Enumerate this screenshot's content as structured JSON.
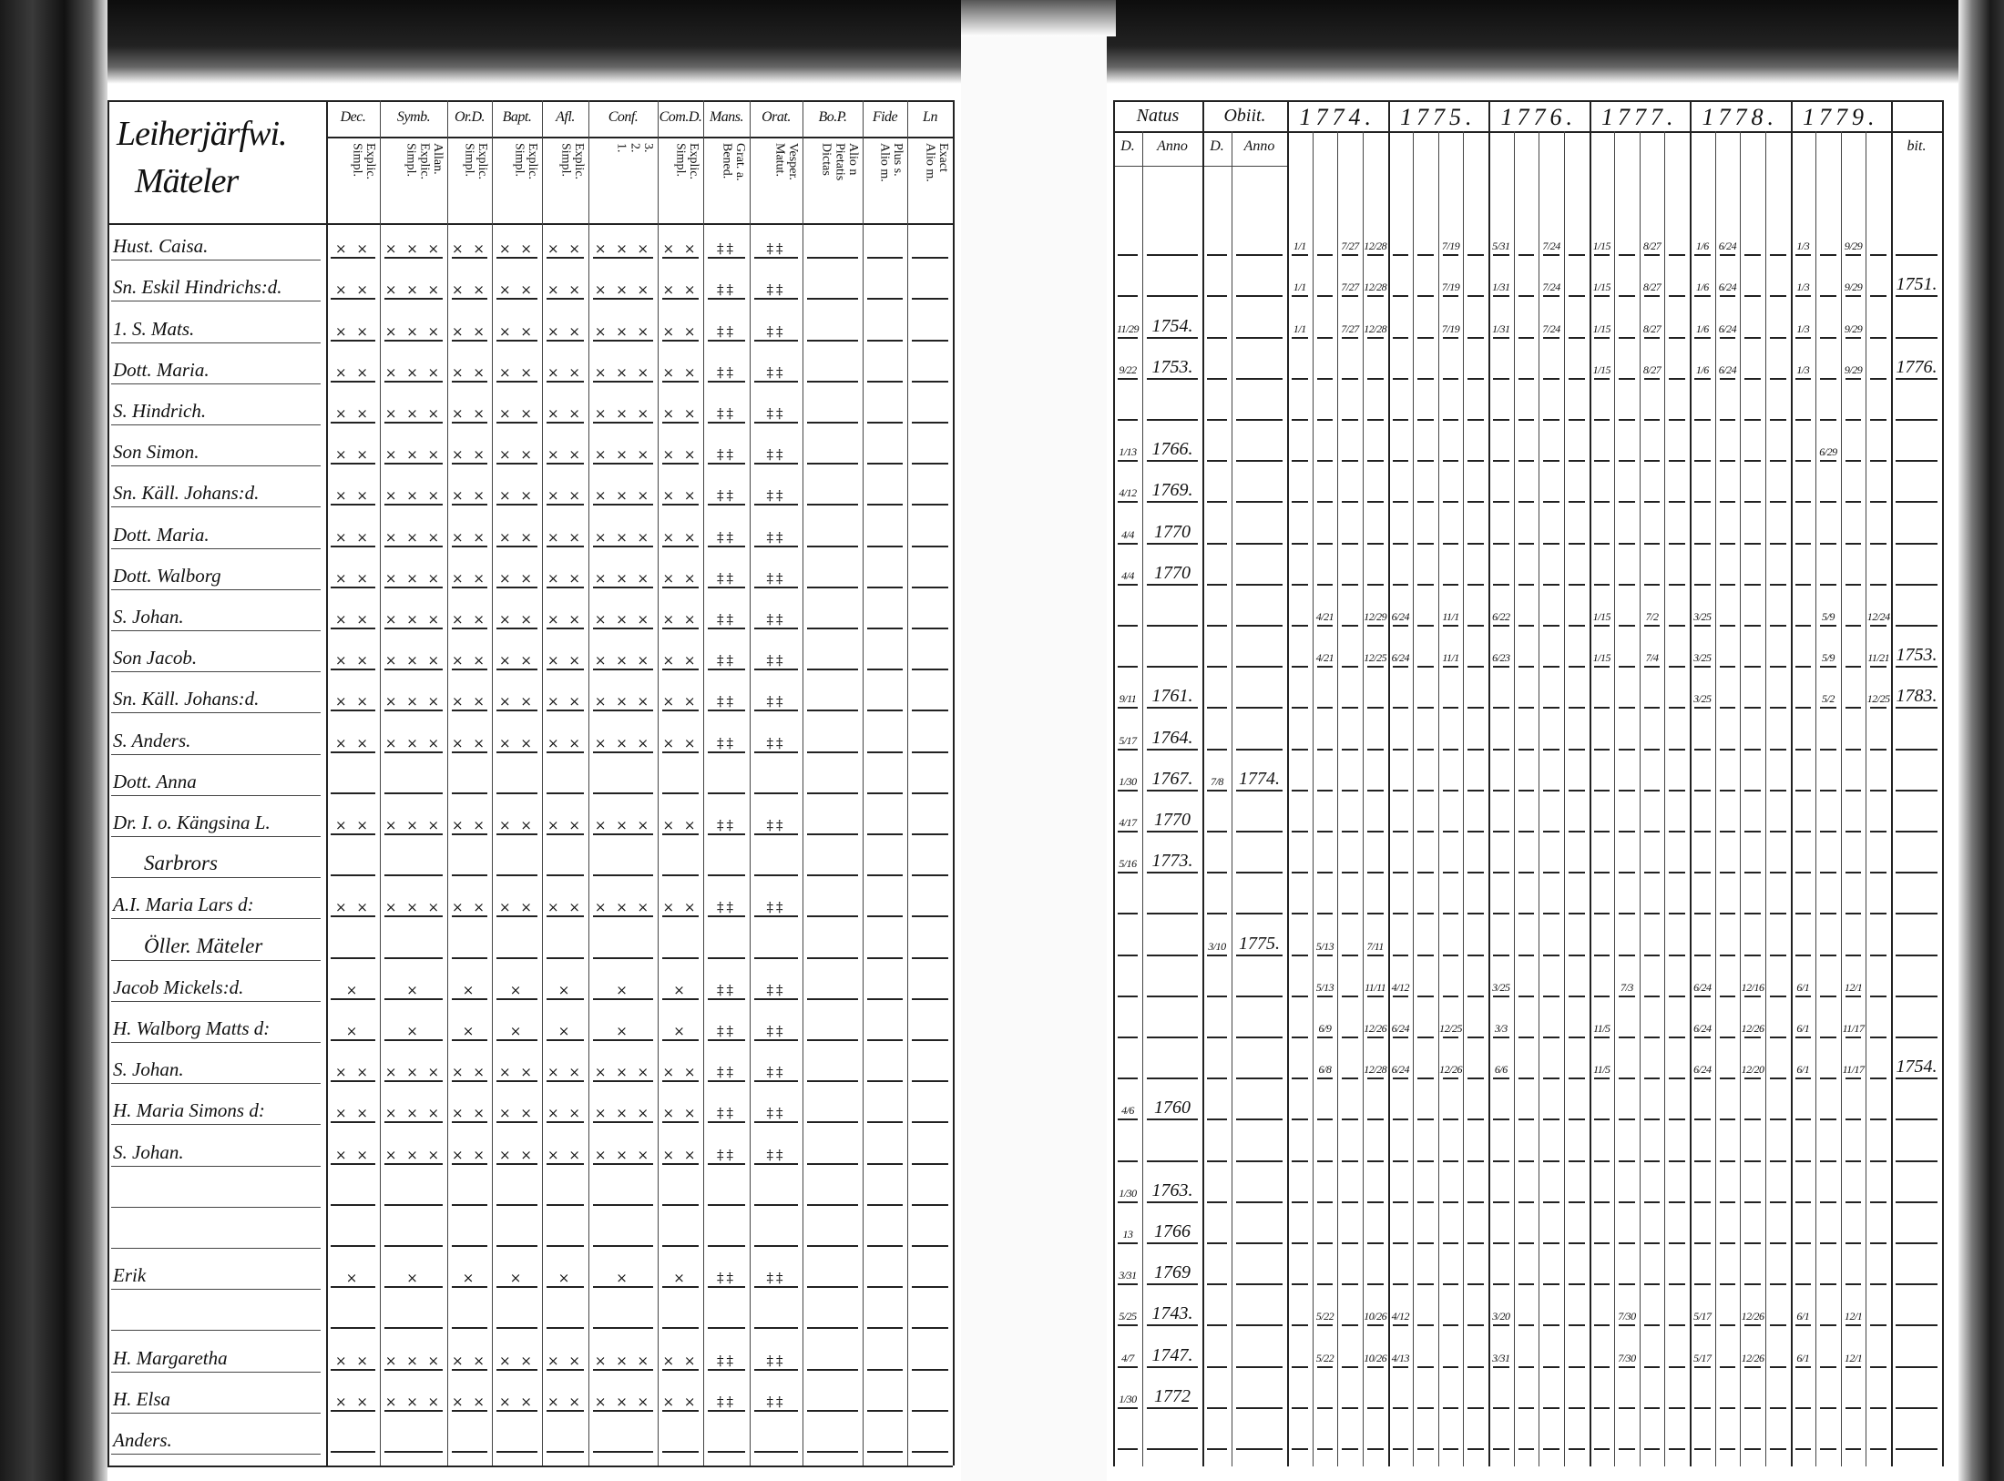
{
  "left_page": {
    "title_line1": "Leiherjärfwi.",
    "title_line2": "Mäteler",
    "columns": [
      {
        "head": "Dec.",
        "sub": "Explic.\nSimpl."
      },
      {
        "head": "Symb.",
        "sub": "Allan.\nExplic.\nSimpl."
      },
      {
        "head": "Or.D.",
        "sub": "Explic.\nSimpl."
      },
      {
        "head": "Bapt.",
        "sub": "Explic.\nSimpl."
      },
      {
        "head": "Afl.",
        "sub": "Explic.\nSimpl."
      },
      {
        "head": "Conf.",
        "sub": "3.\n2.\n1."
      },
      {
        "head": "Com.D.",
        "sub": "Explic.\nSimpl."
      },
      {
        "head": "Mans.",
        "sub": "Grat. a.\nBened."
      },
      {
        "head": "Orat.",
        "sub": "Vesper.\nMatut."
      },
      {
        "head": "Bo.P.",
        "sub": "Alio n\nPietatis\nDictas"
      },
      {
        "head": "Fide",
        "sub": "Plus s.\nAlio m."
      },
      {
        "head": "Ln",
        "sub": "Exact\nAlio m."
      }
    ],
    "mark_patterns": {
      "A": [
        "× ×",
        "× × ×",
        "× ×",
        "× ×",
        "× ×",
        "× × ×",
        "× ×",
        "‡‡",
        "‡‡",
        "—",
        "—",
        "—"
      ],
      "B": [
        "×",
        "×",
        "×",
        "×",
        "×",
        "×",
        "×",
        "‡‡",
        "‡‡",
        "—",
        "—",
        "—"
      ],
      "D": [
        "—",
        "—",
        "—",
        "—",
        "—",
        "—",
        "—",
        "—",
        "—",
        "—",
        "—",
        "—"
      ]
    },
    "rows": [
      {
        "name": "Hust. Caisa.",
        "marks": "A"
      },
      {
        "name": "Sn. Eskil Hindrichs:d.",
        "marks": "A"
      },
      {
        "name": "1. S. Mats.",
        "marks": "A"
      },
      {
        "name": "Dott. Maria.",
        "marks": "A"
      },
      {
        "name": "S. Hindrich.",
        "marks": "A"
      },
      {
        "name": "Son Simon.",
        "marks": "A"
      },
      {
        "name": "Sn. Käll. Johans:d.",
        "marks": "A"
      },
      {
        "name": "Dott. Maria.",
        "marks": "A"
      },
      {
        "name": "Dott. Walborg",
        "marks": "A"
      },
      {
        "name": "S. Johan.",
        "marks": "A"
      },
      {
        "name": "Son Jacob.",
        "marks": "A"
      },
      {
        "name": "Sn. Käll. Johans:d.",
        "marks": "A"
      },
      {
        "name": "S. Anders.",
        "marks": "A"
      },
      {
        "name": "Dott. Anna",
        "marks": "D"
      },
      {
        "name": "Dr. I. o. Kängsina L.",
        "marks": "A"
      },
      {
        "name": "Sarbrors",
        "marks": "D",
        "heading": true
      },
      {
        "name": "A.I. Maria Lars d:",
        "marks": "A"
      },
      {
        "name": "Öller. Mäteler",
        "marks": "D",
        "heading": true
      },
      {
        "name": "Jacob Mickels:d.",
        "marks": "B"
      },
      {
        "name": "H. Walborg Matts d:",
        "marks": "B"
      },
      {
        "name": "S. Johan.",
        "marks": "A"
      },
      {
        "name": "H. Maria Simons d:",
        "marks": "A"
      },
      {
        "name": "S. Johan.",
        "marks": "A"
      },
      {
        "name": "",
        "marks": "D"
      },
      {
        "name": "",
        "marks": "D"
      },
      {
        "name": "Erik",
        "marks": "B"
      },
      {
        "name": "",
        "marks": "D"
      },
      {
        "name": "H. Margaretha",
        "marks": "A"
      },
      {
        "name": "H. Elsa",
        "marks": "A"
      },
      {
        "name": "Anders.",
        "marks": "D"
      }
    ]
  },
  "right_page": {
    "natus": "Natus",
    "obiit": "Obiit.",
    "d_label": "D.",
    "anno_label": "Anno",
    "years": [
      "1774.",
      "1775.",
      "1776.",
      "1777.",
      "1778.",
      "1779."
    ],
    "extra_header": "bit.",
    "rows": [
      {
        "natus_d": "",
        "natus_anno": "",
        "obiit_d": "",
        "obiit_anno": "",
        "bit": "",
        "entries": {
          "0": "1/1",
          "2": "7/27",
          "3": "12/28",
          "6": "7/19",
          "8": "5/31",
          "10": "7/24",
          "12": "1/15",
          "14": "8/27",
          "16": "1/6",
          "17": "6/24",
          "20": "1/3",
          "22": "9/29"
        }
      },
      {
        "natus_d": "",
        "natus_anno": "",
        "obiit_d": "",
        "obiit_anno": "",
        "bit": "1751.",
        "entries": {
          "0": "1/1",
          "2": "7/27",
          "3": "12/28",
          "6": "7/19",
          "8": "1/31",
          "10": "7/24",
          "12": "1/15",
          "14": "8/27",
          "16": "1/6",
          "17": "6/24",
          "20": "1/3",
          "22": "9/29"
        }
      },
      {
        "natus_d": "11/29",
        "natus_anno": "1754.",
        "obiit_d": "",
        "obiit_anno": "",
        "bit": "",
        "entries": {
          "0": "1/1",
          "2": "7/27",
          "3": "12/28",
          "6": "7/19",
          "8": "1/31",
          "10": "7/24",
          "12": "1/15",
          "14": "8/27",
          "16": "1/6",
          "17": "6/24",
          "20": "1/3",
          "22": "9/29"
        }
      },
      {
        "natus_d": "9/22",
        "natus_anno": "1753.",
        "obiit_d": "",
        "obiit_anno": "",
        "bit": "1776.",
        "entries": {
          "12": "1/15",
          "14": "8/27",
          "16": "1/6",
          "17": "6/24",
          "20": "1/3",
          "22": "9/29"
        }
      },
      {
        "natus_d": "",
        "natus_anno": "",
        "obiit_d": "",
        "obiit_anno": "",
        "bit": "",
        "entries": {}
      },
      {
        "natus_d": "1/13",
        "natus_anno": "1766.",
        "obiit_d": "",
        "obiit_anno": "",
        "bit": "",
        "entries": {
          "21": "6/29"
        }
      },
      {
        "natus_d": "4/12",
        "natus_anno": "1769.",
        "obiit_d": "",
        "obiit_anno": "",
        "bit": "",
        "entries": {}
      },
      {
        "natus_d": "4/4",
        "natus_anno": "1770",
        "obiit_d": "",
        "obiit_anno": "",
        "bit": "",
        "entries": {}
      },
      {
        "natus_d": "4/4",
        "natus_anno": "1770",
        "obiit_d": "",
        "obiit_anno": "",
        "bit": "",
        "entries": {}
      },
      {
        "natus_d": "",
        "natus_anno": "",
        "obiit_d": "",
        "obiit_anno": "",
        "bit": "",
        "entries": {
          "1": "4/21",
          "3": "12/29",
          "4": "6/24",
          "6": "11/1",
          "8": "6/22",
          "12": "1/15",
          "14": "7/2",
          "16": "3/25",
          "21": "5/9",
          "23": "12/24"
        }
      },
      {
        "natus_d": "",
        "natus_anno": "",
        "obiit_d": "",
        "obiit_anno": "",
        "bit": "1753.",
        "entries": {
          "1": "4/21",
          "3": "12/25",
          "4": "6/24",
          "6": "11/1",
          "8": "6/23",
          "12": "1/15",
          "14": "7/4",
          "16": "3/25",
          "21": "5/9",
          "23": "11/21"
        }
      },
      {
        "natus_d": "9/11",
        "natus_anno": "1761.",
        "obiit_d": "",
        "obiit_anno": "",
        "bit": "1783.",
        "entries": {
          "16": "3/25",
          "21": "5/2",
          "23": "12/25"
        }
      },
      {
        "natus_d": "5/17",
        "natus_anno": "1764.",
        "obiit_d": "",
        "obiit_anno": "",
        "bit": "",
        "entries": {}
      },
      {
        "natus_d": "1/30",
        "natus_anno": "1767.",
        "obiit_d": "7/8",
        "obiit_anno": "1774.",
        "bit": "",
        "entries": {}
      },
      {
        "natus_d": "4/17",
        "natus_anno": "1770",
        "obiit_d": "",
        "obiit_anno": "",
        "bit": "",
        "entries": {}
      },
      {
        "natus_d": "5/16",
        "natus_anno": "1773.",
        "obiit_d": "",
        "obiit_anno": "",
        "bit": "",
        "entries": {}
      },
      {
        "natus_d": "",
        "natus_anno": "",
        "obiit_d": "",
        "obiit_anno": "",
        "bit": "",
        "entries": {}
      },
      {
        "natus_d": "",
        "natus_anno": "",
        "obiit_d": "3/10",
        "obiit_anno": "1775.",
        "bit": "",
        "entries": {
          "1": "5/13",
          "3": "7/11"
        }
      },
      {
        "natus_d": "",
        "natus_anno": "",
        "obiit_d": "",
        "obiit_anno": "",
        "bit": "",
        "entries": {
          "1": "5/13",
          "3": "11/11",
          "4": "4/12",
          "8": "3/25",
          "13": "7/3",
          "16": "6/24",
          "18": "12/16",
          "20": "6/1",
          "22": "12/1"
        }
      },
      {
        "natus_d": "",
        "natus_anno": "",
        "obiit_d": "",
        "obiit_anno": "",
        "bit": "",
        "entries": {
          "1": "6/9",
          "3": "12/26",
          "4": "6/24",
          "6": "12/25",
          "8": "3/3",
          "12": "11/5",
          "16": "6/24",
          "18": "12/26",
          "20": "6/1",
          "22": "11/17"
        }
      },
      {
        "natus_d": "",
        "natus_anno": "",
        "obiit_d": "",
        "obiit_anno": "",
        "bit": "1754.",
        "entries": {
          "1": "6/8",
          "3": "12/28",
          "4": "6/24",
          "6": "12/26",
          "8": "6/6",
          "12": "11/5",
          "16": "6/24",
          "18": "12/20",
          "20": "6/1",
          "22": "11/17"
        }
      },
      {
        "natus_d": "4/6",
        "natus_anno": "1760",
        "obiit_d": "",
        "obiit_anno": "",
        "bit": "",
        "entries": {}
      },
      {
        "natus_d": "",
        "natus_anno": "",
        "obiit_d": "",
        "obiit_anno": "",
        "bit": "",
        "entries": {}
      },
      {
        "natus_d": "1/30",
        "natus_anno": "1763.",
        "obiit_d": "",
        "obiit_anno": "",
        "bit": "",
        "entries": {}
      },
      {
        "natus_d": "13",
        "natus_anno": "1766",
        "obiit_d": "",
        "obiit_anno": "",
        "bit": "",
        "entries": {}
      },
      {
        "natus_d": "3/31",
        "natus_anno": "1769",
        "obiit_d": "",
        "obiit_anno": "",
        "bit": "",
        "entries": {}
      },
      {
        "natus_d": "5/25",
        "natus_anno": "1743.",
        "obiit_d": "",
        "obiit_anno": "",
        "bit": "",
        "entries": {
          "1": "5/22",
          "3": "10/26",
          "4": "4/12",
          "8": "3/20",
          "13": "7/30",
          "16": "5/17",
          "18": "12/26",
          "20": "6/1",
          "22": "12/1"
        }
      },
      {
        "natus_d": "4/7",
        "natus_anno": "1747.",
        "obiit_d": "",
        "obiit_anno": "",
        "bit": "",
        "entries": {
          "1": "5/22",
          "3": "10/26",
          "4": "4/13",
          "8": "3/31",
          "13": "7/30",
          "16": "5/17",
          "18": "12/26",
          "20": "6/1",
          "22": "12/1"
        }
      },
      {
        "natus_d": "1/30",
        "natus_anno": "1772",
        "obiit_d": "",
        "obiit_anno": "",
        "bit": "",
        "entries": {}
      },
      {
        "natus_d": "",
        "natus_anno": "",
        "obiit_d": "",
        "obiit_anno": "",
        "bit": "",
        "entries": {}
      }
    ]
  }
}
